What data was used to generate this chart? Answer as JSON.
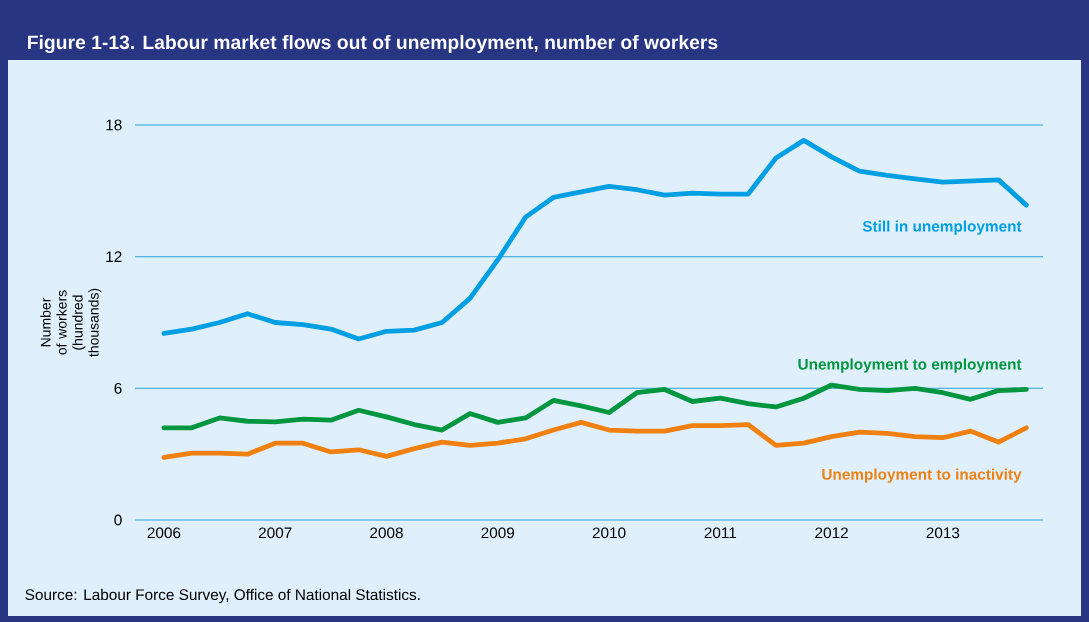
{
  "chart_data": {
    "type": "line",
    "title": "Figure 1-13.  Labour market flows out of unemployment, number of workers",
    "ylabel": "Number of workers (hundred thousands)",
    "annotations": [
      "Source: Labour Force Survey, Office of National Statistics."
    ],
    "x": [
      2006,
      2006.25,
      2006.5,
      2006.75,
      2007,
      2007.25,
      2007.5,
      2007.75,
      2008,
      2008.25,
      2008.5,
      2008.75,
      2009,
      2009.25,
      2009.5,
      2009.75,
      2010,
      2010.25,
      2010.5,
      2010.75,
      2011,
      2011.25,
      2011.5,
      2011.75,
      2012,
      2012.25,
      2012.5,
      2012.75,
      2013,
      2013.25,
      2013.5,
      2013.75
    ],
    "series": [
      {
        "name": "Still in unemployment",
        "color": "#009fe3",
        "values": [
          8.5,
          8.7,
          9.0,
          9.4,
          9.0,
          8.9,
          8.7,
          8.25,
          8.6,
          8.65,
          9.0,
          10.1,
          11.85,
          13.8,
          14.7,
          14.95,
          15.2,
          15.05,
          14.8,
          14.9,
          14.85,
          14.85,
          16.5,
          17.3,
          16.55,
          15.9,
          15.7,
          15.55,
          15.4,
          15.45,
          15.5,
          14.35
        ]
      },
      {
        "name": "Unemployment to employment",
        "color": "#009640",
        "values": [
          4.2,
          4.2,
          4.65,
          4.5,
          4.47,
          4.6,
          4.55,
          5.0,
          4.7,
          4.35,
          4.1,
          4.85,
          4.45,
          4.65,
          5.45,
          5.2,
          4.9,
          5.8,
          5.95,
          5.4,
          5.55,
          5.3,
          5.15,
          5.55,
          6.15,
          5.95,
          5.9,
          6.0,
          5.8,
          5.5,
          5.9,
          5.95
        ]
      },
      {
        "name": "Unemployment to inactivity",
        "color": "#f08010",
        "values": [
          2.85,
          3.05,
          3.05,
          3.0,
          3.5,
          3.5,
          3.1,
          3.2,
          2.9,
          3.25,
          3.55,
          3.4,
          3.5,
          3.7,
          4.1,
          4.45,
          4.1,
          4.05,
          4.05,
          4.3,
          4.3,
          4.35,
          3.4,
          3.5,
          3.8,
          4.0,
          3.95,
          3.8,
          3.75,
          4.05,
          3.55,
          4.2
        ]
      }
    ],
    "xlim": [
      2005.74,
      2013.9
    ],
    "ylim": [
      0,
      18
    ],
    "xticks": [
      2006,
      2007,
      2008,
      2009,
      2010,
      2011,
      2012,
      2013
    ],
    "yticks": [
      0,
      6,
      12,
      18
    ],
    "grid": "y",
    "legend": false
  }
}
